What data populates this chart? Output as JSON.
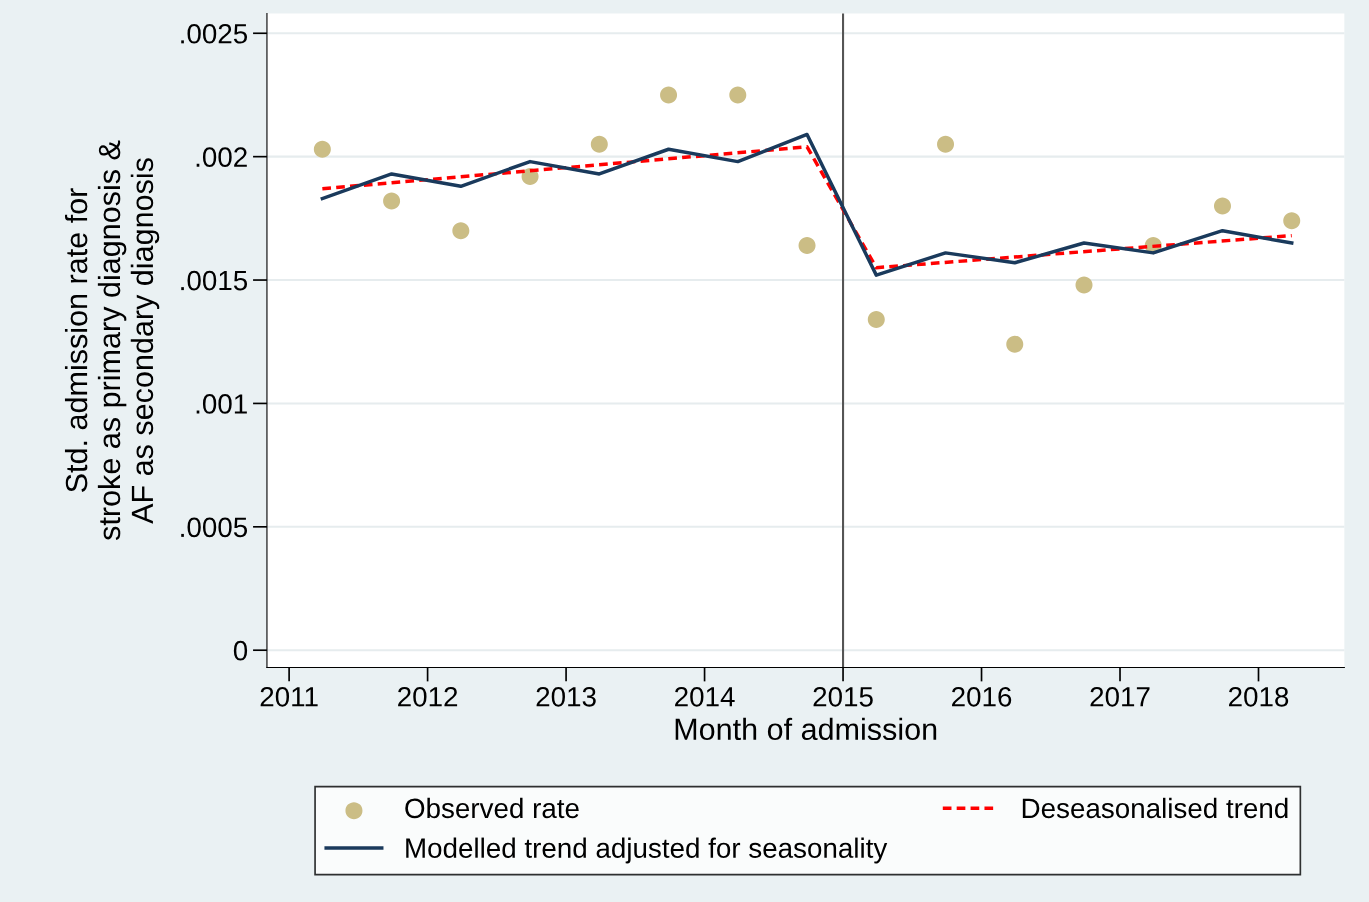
{
  "chart_data": {
    "type": "line",
    "xlabel": "Month of admission",
    "ylabel": "Std. admission rate for\nstroke as primary diagnosis &\nAF as secondary diagnosis",
    "xlim": [
      2010.84,
      2018.62
    ],
    "xticks": [
      2011,
      2012,
      2013,
      2014,
      2015,
      2016,
      2017,
      2018
    ],
    "ylim": [
      -7e-05,
      0.00258
    ],
    "yticks": [
      {
        "value": 0,
        "label": "0"
      },
      {
        "value": 0.0005,
        "label": ".0005"
      },
      {
        "value": 0.001,
        "label": ".001"
      },
      {
        "value": 0.0015,
        "label": ".0015"
      },
      {
        "value": 0.002,
        "label": ".002"
      },
      {
        "value": 0.0025,
        "label": ".0025"
      }
    ],
    "grid": "y",
    "legend": "bottom",
    "ref_lines": [
      {
        "axis": "x",
        "value": 2015,
        "color": "#555555"
      }
    ],
    "series": [
      {
        "name": "Observed rate",
        "type": "scatter",
        "marker": "circle",
        "color": "#cbbd85",
        "x": [
          2011.24,
          2011.74,
          2012.24,
          2012.74,
          2013.24,
          2013.74,
          2014.24,
          2014.74,
          2015.24,
          2015.74,
          2016.24,
          2016.74,
          2017.24,
          2017.74,
          2018.24
        ],
        "values": [
          0.00203,
          0.00182,
          0.0017,
          0.00192,
          0.00205,
          0.00225,
          0.00225,
          0.00164,
          0.00134,
          0.00205,
          0.00124,
          0.00148,
          0.00164,
          0.0018,
          0.00174
        ]
      },
      {
        "name": "Deseasonalised trend",
        "marker": "none",
        "line_style": "dashed",
        "color": "#ff0000",
        "x": [
          2011.24,
          2014.74,
          2015.24,
          2018.24
        ],
        "values": [
          0.00187,
          0.00204,
          0.00155,
          0.00168
        ]
      },
      {
        "name": "Modelled trend adjusted for seasonality",
        "marker": "none",
        "line_style": "solid",
        "color": "#1a3a5c",
        "x": [
          2011.24,
          2011.74,
          2012.24,
          2012.74,
          2013.24,
          2013.74,
          2014.24,
          2014.74,
          2015.24,
          2015.74,
          2016.24,
          2016.74,
          2017.24,
          2017.74,
          2018.24
        ],
        "values": [
          0.00183,
          0.00193,
          0.00188,
          0.00198,
          0.00193,
          0.00203,
          0.00198,
          0.00209,
          0.00152,
          0.00161,
          0.00157,
          0.00165,
          0.00161,
          0.0017,
          0.00165
        ]
      }
    ]
  }
}
